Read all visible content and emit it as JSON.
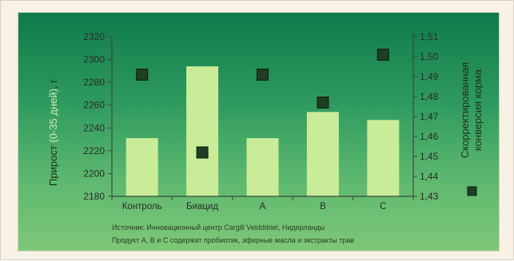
{
  "colors": {
    "bar": "#c9ec98",
    "marker": "#1f3e24",
    "axis": "#3a4a3a",
    "panel_top": "#0f7a4a",
    "panel_bottom": "#7ec877"
  },
  "legend": {
    "marker_icon": "square-marker-icon"
  },
  "chart_data": {
    "type": "bar",
    "categories": [
      "Контроль",
      "Биацид",
      "A",
      "B",
      "C"
    ],
    "ylabel_prefix": "Прирост ",
    "ylabel_paren": "(0-35 дней)",
    "ylabel_suffix": ", г",
    "y2label_line1": "Скорректированная",
    "y2label_line2": "конверсия корма",
    "ylim": [
      2180,
      2320
    ],
    "y_ticks": [
      2180,
      2200,
      2220,
      2240,
      2260,
      2280,
      2300,
      2320
    ],
    "y2lim": [
      1.43,
      1.51
    ],
    "y2_ticks": [
      "1,43",
      "1,44",
      "1,45",
      "1,46",
      "1,47",
      "1,48",
      "1,49",
      "1,50",
      "1,51"
    ],
    "series": [
      {
        "axis": "left",
        "values": [
          2231,
          2294,
          2231,
          2254,
          2247
        ]
      },
      {
        "axis": "right",
        "type": "scatter",
        "values": [
          1.491,
          1.452,
          1.491,
          1.477,
          1.501
        ]
      }
    ],
    "notes": [
      "Источник: Инновационный центр Cargill Veldddriel, Нидерланды",
      "Продукт A, B и C содержат пробиотик, эфирные масла и экстракты трав"
    ]
  }
}
